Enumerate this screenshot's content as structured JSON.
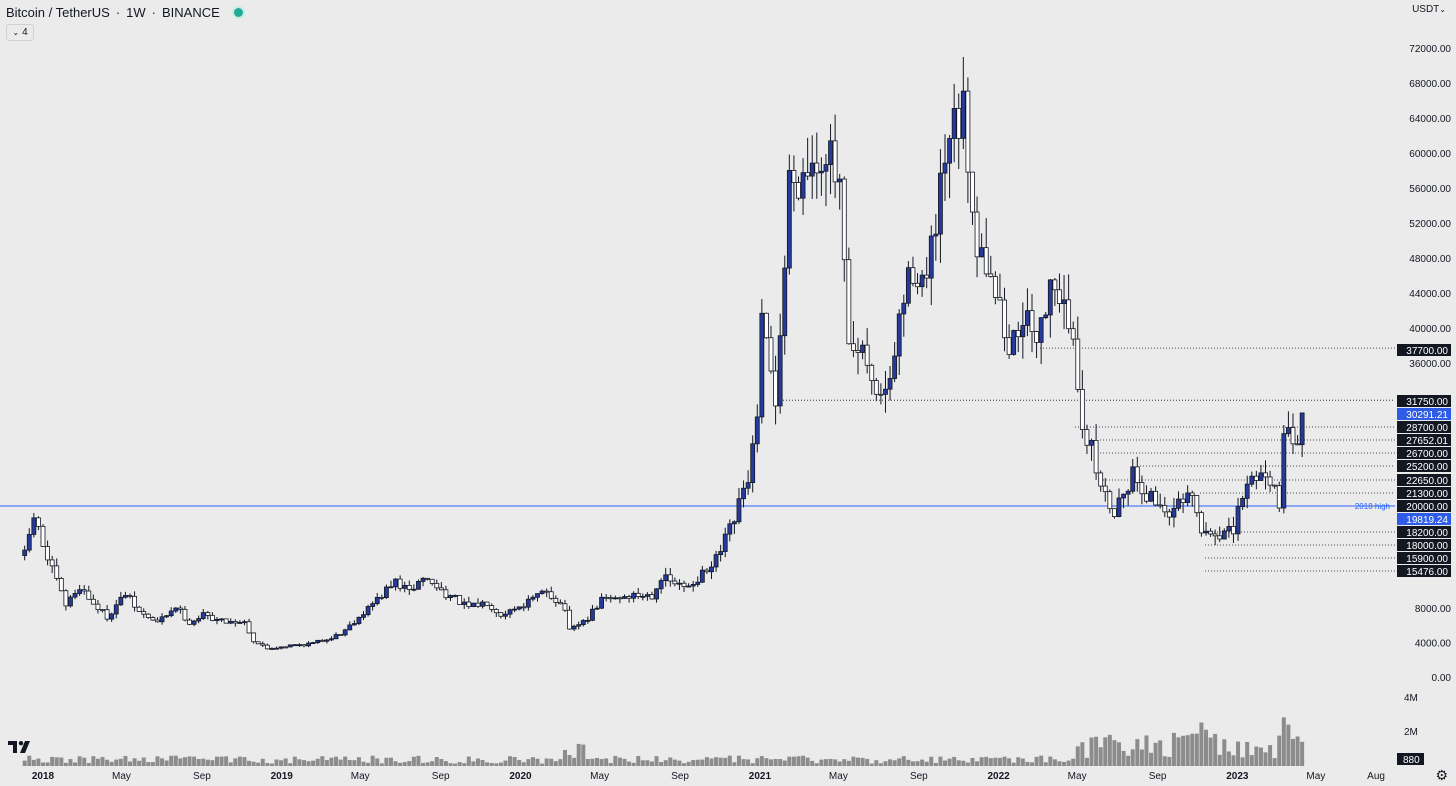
{
  "header": {
    "symbol": "Bitcoin / TetherUS",
    "timeframe": "1W",
    "exchange": "BINANCE",
    "indicator_count": "4",
    "currency": "USDT"
  },
  "colors": {
    "bullish_body": "#263a9c",
    "bearish_body": "#ffffff",
    "wick": "#131722",
    "level_line": "#131722",
    "high_line": "#2962ff",
    "volume": "#8c8c8c",
    "background": "#ebebeb",
    "label_bg": "#131722",
    "price_label_bg": "#2e5ce6"
  },
  "chart_data": {
    "type": "candlestick",
    "timeframe": "weekly",
    "y_axis": {
      "ticks": [
        "72000.00",
        "68000.00",
        "64000.00",
        "60000.00",
        "56000.00",
        "52000.00",
        "48000.00",
        "44000.00",
        "40000.00",
        "36000.00",
        "8000.00",
        "4000.00",
        "0.00"
      ]
    },
    "x_axis": {
      "ticks": [
        "2018",
        "May",
        "Sep",
        "2019",
        "May",
        "Sep",
        "2020",
        "May",
        "Sep",
        "2021",
        "May",
        "Sep",
        "2022",
        "May",
        "Sep",
        "2023",
        "May",
        "Aug"
      ]
    },
    "volume_axis": {
      "ticks": [
        "4M",
        "2M",
        "880"
      ]
    },
    "horizontal_levels": [
      {
        "label": "37700.00",
        "style": "dotted"
      },
      {
        "label": "31750.00",
        "style": "dotted"
      },
      {
        "label": "28700.00",
        "style": "dotted"
      },
      {
        "label": "27652.01",
        "style": "dotted"
      },
      {
        "label": "26700.00",
        "style": "dotted"
      },
      {
        "label": "25200.00",
        "style": "dotted"
      },
      {
        "label": "22650.00",
        "style": "dotted"
      },
      {
        "label": "21300.00",
        "style": "dotted"
      },
      {
        "label": "20000.00",
        "style": "solid",
        "annotation": "2018 high"
      },
      {
        "label": "18200.00",
        "style": "dotted"
      },
      {
        "label": "18000.00",
        "style": "dotted"
      },
      {
        "label": "15900.00",
        "style": "dotted"
      },
      {
        "label": "15476.00",
        "style": "dotted"
      }
    ],
    "price_labels": [
      {
        "label": "30291.21",
        "kind": "last_price"
      },
      {
        "label": "19819.24",
        "kind": "marker"
      }
    ],
    "price_path": [
      [
        "2017-12-04",
        14000
      ],
      [
        "2017-12-18",
        18500
      ],
      [
        "2018-01-08",
        13500
      ],
      [
        "2018-01-22",
        11000
      ],
      [
        "2018-02-05",
        8300
      ],
      [
        "2018-02-26",
        10500
      ],
      [
        "2018-03-19",
        8500
      ],
      [
        "2018-04-09",
        7000
      ],
      [
        "2018-05-07",
        9600
      ],
      [
        "2018-05-28",
        7500
      ],
      [
        "2018-06-25",
        6300
      ],
      [
        "2018-07-23",
        8200
      ],
      [
        "2018-08-13",
        6300
      ],
      [
        "2018-09-03",
        7200
      ],
      [
        "2018-10-01",
        6500
      ],
      [
        "2018-11-05",
        6400
      ],
      [
        "2018-11-19",
        4200
      ],
      [
        "2018-12-10",
        3300
      ],
      [
        "2019-01-07",
        3600
      ],
      [
        "2019-02-18",
        3900
      ],
      [
        "2019-04-01",
        5000
      ],
      [
        "2019-05-13",
        8000
      ],
      [
        "2019-06-24",
        11000
      ],
      [
        "2019-07-15",
        9800
      ],
      [
        "2019-08-05",
        11500
      ],
      [
        "2019-09-02",
        10000
      ],
      [
        "2019-10-14",
        8000
      ],
      [
        "2019-11-11",
        8700
      ],
      [
        "2019-12-02",
        7300
      ],
      [
        "2020-01-13",
        8700
      ],
      [
        "2020-02-10",
        10000
      ],
      [
        "2020-03-09",
        7900
      ],
      [
        "2020-03-16",
        5300
      ],
      [
        "2020-04-13",
        6800
      ],
      [
        "2020-05-04",
        8900
      ],
      [
        "2020-06-15",
        9400
      ],
      [
        "2020-07-20",
        9500
      ],
      [
        "2020-08-03",
        11500
      ],
      [
        "2020-09-07",
        10300
      ],
      [
        "2020-10-19",
        12500
      ],
      [
        "2020-11-02",
        14500
      ],
      [
        "2020-11-23",
        18000
      ],
      [
        "2020-12-14",
        23000
      ],
      [
        "2020-12-28",
        29000
      ],
      [
        "2021-01-04",
        40000
      ],
      [
        "2021-01-25",
        32000
      ],
      [
        "2021-02-08",
        47000
      ],
      [
        "2021-02-15",
        57000
      ],
      [
        "2021-03-08",
        58000
      ],
      [
        "2021-04-12",
        61000
      ],
      [
        "2021-05-03",
        55000
      ],
      [
        "2021-05-17",
        37000
      ],
      [
        "2021-06-14",
        36000
      ],
      [
        "2021-06-21",
        33000
      ],
      [
        "2021-07-19",
        33000
      ],
      [
        "2021-08-02",
        41000
      ],
      [
        "2021-08-23",
        47000
      ],
      [
        "2021-09-13",
        45000
      ],
      [
        "2021-10-04",
        55000
      ],
      [
        "2021-10-18",
        61000
      ],
      [
        "2021-11-08",
        64000
      ],
      [
        "2021-11-29",
        50000
      ],
      [
        "2021-12-20",
        47000
      ],
      [
        "2022-01-17",
        37000
      ],
      [
        "2022-02-07",
        42000
      ],
      [
        "2022-02-21",
        38000
      ],
      [
        "2022-03-28",
        46000
      ],
      [
        "2022-04-25",
        38000
      ],
      [
        "2022-05-09",
        29500
      ],
      [
        "2022-06-13",
        20500
      ],
      [
        "2022-06-27",
        19300
      ],
      [
        "2022-07-25",
        23500
      ],
      [
        "2022-08-15",
        21000
      ],
      [
        "2022-09-19",
        19000
      ],
      [
        "2022-10-24",
        20500
      ],
      [
        "2022-11-07",
        16500
      ],
      [
        "2022-12-26",
        16600
      ],
      [
        "2023-01-09",
        21000
      ],
      [
        "2023-01-30",
        23500
      ],
      [
        "2023-02-20",
        23000
      ],
      [
        "2023-03-06",
        20400
      ],
      [
        "2023-03-13",
        26900
      ],
      [
        "2023-03-20",
        27500
      ],
      [
        "2023-04-03",
        28000
      ],
      [
        "2023-04-10",
        30291
      ]
    ]
  }
}
